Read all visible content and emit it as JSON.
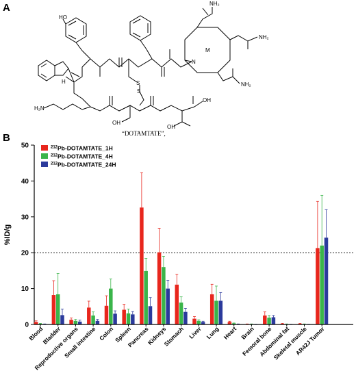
{
  "panels": {
    "a": "A",
    "b": "B"
  },
  "structure": {
    "compound_label": "“DOTAMTATE”,",
    "metal_label": "M",
    "atoms": {
      "ho": "HO",
      "h2n": "H₂N",
      "nh2_top": "NH₂",
      "nh2_right": "NH₂",
      "nh2_bottom": "NH₂",
      "oh_acid": "OH",
      "oh_thr1": "OH",
      "oh_thr2": "OH",
      "s1": "S",
      "s2": "S",
      "nh_ring": "N",
      "h_indole": "H"
    }
  },
  "chart_data": {
    "type": "bar",
    "ylabel": "%ID/g",
    "ylim": [
      0,
      50
    ],
    "yticks": [
      0,
      10,
      20,
      30,
      40,
      50
    ],
    "reference_line": 20,
    "categories": [
      "Blood",
      "Bladder",
      "Reproductive organs",
      "Small intestine",
      "Colon",
      "Spleen",
      "Pancreas",
      "Kidneys",
      "Stomach",
      "Liver",
      "Lung",
      "Heart",
      "Brain",
      "Femoral bone",
      "Abdominal fat",
      "Skeletal muscle",
      "AR42J Tumor"
    ],
    "legend_position": "top-left",
    "series": [
      {
        "name": "Pb-DOTAMTATE_1H",
        "superscript": "212",
        "color": "#e8261d",
        "values": [
          0.7,
          8.2,
          1.3,
          4.7,
          5.2,
          4.1,
          32.6,
          20.1,
          11.1,
          1.6,
          8.4,
          0.7,
          0.1,
          2.5,
          0.2,
          0.2,
          21.3
        ],
        "errors": [
          0.3,
          4.0,
          0.5,
          1.8,
          2.8,
          1.5,
          9.7,
          6.7,
          2.9,
          0.6,
          2.8,
          0.2,
          0.05,
          1.0,
          0.1,
          0.1,
          13.0
        ]
      },
      {
        "name": "Pb-DOTAMTATE_4H",
        "superscript": "212",
        "color": "#3ab54a",
        "values": [
          0.2,
          8.4,
          1.0,
          2.5,
          10.0,
          3.1,
          14.9,
          16.0,
          6.1,
          1.0,
          6.6,
          0.3,
          0.1,
          1.9,
          0.1,
          0.1,
          22.0
        ],
        "errors": [
          0.1,
          5.8,
          0.4,
          1.0,
          2.7,
          1.2,
          3.5,
          3.0,
          1.6,
          0.3,
          4.1,
          0.1,
          0.05,
          0.6,
          0.05,
          0.05,
          14.0
        ]
      },
      {
        "name": "Pb-DOTAMTATE_24H",
        "superscript": "212",
        "color": "#2b3a9c",
        "values": [
          0.1,
          2.6,
          0.8,
          1.0,
          3.0,
          2.8,
          5.1,
          10.0,
          3.5,
          0.7,
          6.6,
          0.1,
          0.05,
          2.0,
          0.05,
          0.05,
          24.2
        ],
        "errors": [
          0.05,
          1.7,
          0.4,
          0.4,
          0.8,
          0.8,
          2.4,
          2.3,
          1.0,
          0.2,
          2.3,
          0.05,
          0.02,
          0.5,
          0.02,
          0.02,
          7.8
        ]
      }
    ]
  }
}
